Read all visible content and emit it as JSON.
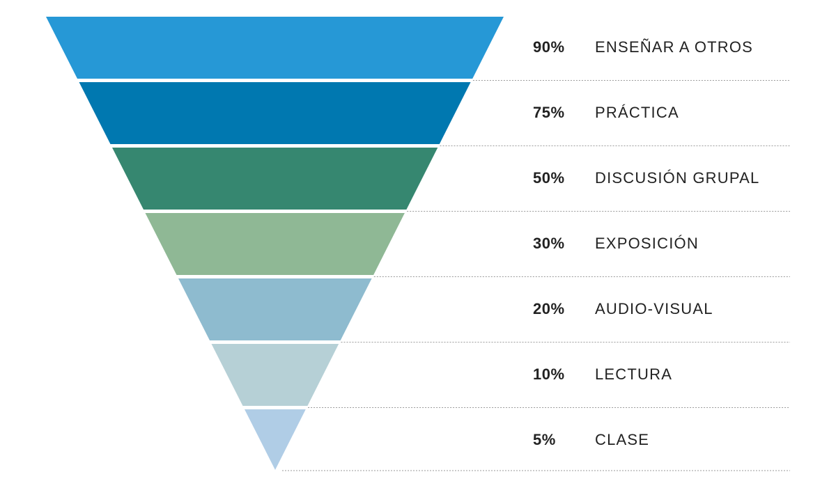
{
  "levels": [
    {
      "percent": "90%",
      "label": "ENSEÑAR A OTROS",
      "color": "#2698d6"
    },
    {
      "percent": "75%",
      "label": "PRÁCTICA",
      "color": "#0078b0"
    },
    {
      "percent": "50%",
      "label": "DISCUSIÓN GRUPAL",
      "color": "#368770"
    },
    {
      "percent": "30%",
      "label": "EXPOSICIÓN",
      "color": "#8fb895"
    },
    {
      "percent": "20%",
      "label": "AUDIO-VISUAL",
      "color": "#8ebbcf"
    },
    {
      "percent": "10%",
      "label": "LECTURA",
      "color": "#b6d0d6"
    },
    {
      "percent": "5%",
      "label": "CLASE",
      "color": "#b0cde6"
    }
  ],
  "separator_color": "#9a9a9a"
}
